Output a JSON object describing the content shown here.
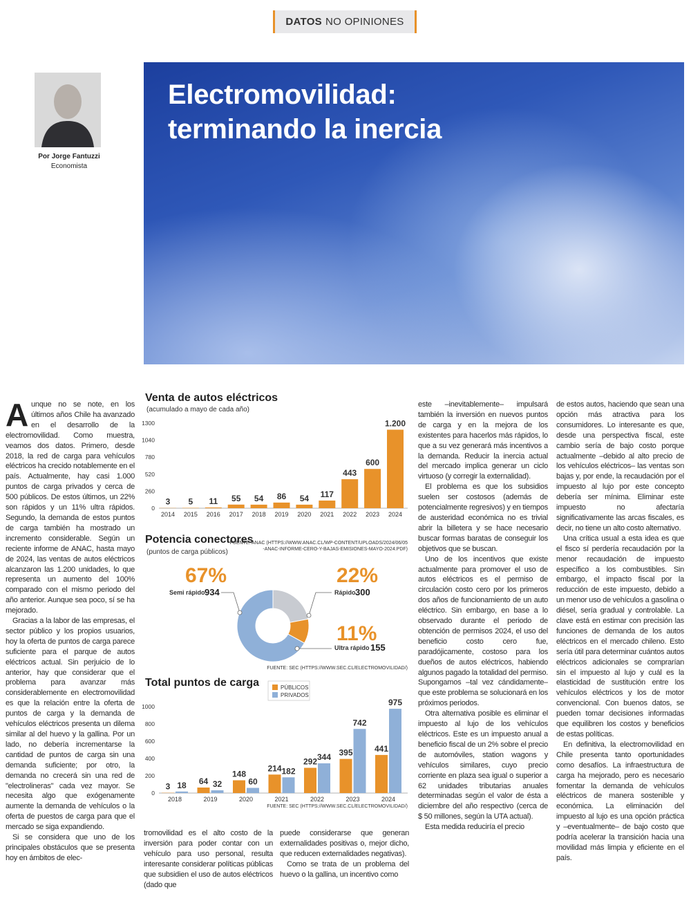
{
  "header": {
    "bold": "DATOS",
    "rest": "NO OPINIONES"
  },
  "author": {
    "name": "Por Jorge Fantuzzi",
    "role": "Economista"
  },
  "title": [
    "Electromovilidad:",
    "terminando la inercia"
  ],
  "article": {
    "dropcap": "A",
    "columns": [
      [
        "unque no se note, en los últimos años Chile ha avanzado en el desarrollo de la electromovilidad. Como muestra, veamos dos datos. Primero, desde 2018, la red de carga para vehículos eléctricos ha crecido notablemente en el país. Actualmente, hay casi 1.000 puntos de carga privados y cerca de 500 públicos. De estos últimos, un 22% son rápidos y un 11% ultra rápidos. Segundo, la demanda de estos puntos de carga también ha mostrado un incremento considerable. Según un reciente informe de ANAC, hasta mayo de 2024, las ventas de autos eléctricos alcanzaron las 1.200 unidades, lo que representa un aumento del 100% comparado con el mismo periodo del año anterior. Aunque sea poco, sí se ha mejorado.",
        "Gracias a la labor de las empresas, el sector público y los propios usuarios, hoy la oferta de puntos de carga parece suficiente para el parque de autos eléctricos actual. Sin perjuicio de lo anterior, hay que considerar que el problema para avanzar más considerablemente en electromovilidad es que la relación entre la oferta de puntos de carga y la demanda de vehículos eléctricos presenta un dilema similar al del huevo y la gallina. Por un lado, no debería incrementarse la cantidad de puntos de carga sin una demanda suficiente; por otro, la demanda no crecerá sin una red de \"electrolineras\" cada vez mayor. Se necesita algo que exógenamente aumente la demanda de vehículos o la oferta de puestos de carga para que el mercado se siga expandiendo.",
        "Si se considera que uno de los principales obstáculos que se presenta hoy en ámbitos de elec-"
      ],
      [
        "tromovilidad es el alto costo de la inversión para poder contar con un vehículo para uso personal, resulta interesante considerar políticas públicas que subsidien el uso de autos eléctricos (dado que"
      ],
      [
        "puede considerarse que generan externalidades positivas o, mejor dicho, que reducen externalidades negativas).",
        "Como se trata de un problema del huevo o la gallina, un incentivo como"
      ],
      [
        "este –inevitablemente– impulsará también la inversión en nuevos puntos de carga y en la mejora de los existentes para hacerlos más rápidos, lo que a su vez generará más incentivos a la demanda. Reducir la inercia actual del mercado implica generar un ciclo virtuoso (y corregir la externalidad).",
        "El problema es que los subsidios suelen ser costosos (además de potencialmente regresivos) y en tiempos de austeridad económica no es trivial abrir la billetera y se hace necesario buscar formas baratas de conseguir los objetivos que se buscan.",
        "Uno de los incentivos que existe actualmente para promover el uso de autos eléctricos es el permiso de circulación costo cero por los primeros dos años de funcionamiento de un auto eléctrico. Sin embargo, en base a lo observado durante el periodo de obtención de permisos 2024, el uso del beneficio costo cero fue, paradójicamente, costoso para los dueños de autos eléctricos, habiendo algunos pagado la totalidad del permiso. Supongamos –tal vez cándidamente– que este problema se solucionará en los próximos periodos.",
        "Otra alternativa posible es eliminar el impuesto al lujo de los vehículos eléctricos. Este es un impuesto anual a beneficio fiscal de un 2% sobre el precio de automóviles, station wagons y vehículos similares, cuyo precio corriente en plaza sea igual o superior a 62 unidades tributarias anuales determinadas según el valor de ésta a diciembre del año respectivo (cerca de $ 50 millones, según la UTA actual).",
        "Esta medida reduciría el precio"
      ],
      [
        "de estos autos, haciendo que sean una opción más atractiva para los consumidores. Lo interesante es que, desde una perspectiva fiscal, este cambio sería de bajo costo porque actualmente –debido al alto precio de los vehículos eléctricos– las ventas son bajas y, por ende, la recaudación por el impuesto al lujo por este concepto debería ser mínima. Eliminar este impuesto no afectaría significativamente las arcas fiscales, es decir, no tiene un alto costo alternativo.",
        "Una crítica usual a esta idea es que el fisco sí perdería recaudación por la menor recaudación de impuesto específico a los combustibles. Sin embargo, el impacto fiscal por la reducción de este impuesto, debido a un menor uso de vehículos a gasolina o diésel, sería gradual y controlable. La clave está en estimar con precisión las funciones de demanda de los autos eléctricos en el mercado chileno. Esto sería útil para determinar cuántos autos eléctricos adicionales se comprarían sin el impuesto al lujo y cuál es la elasticidad de sustitución entre los vehículos eléctricos y los de motor convencional. Con buenos datos, se pueden tomar decisiones informadas que equilibren los costos y beneficios de estas políticas.",
        "En definitiva, la electromovilidad en Chile presenta tanto oportunidades como desafíos. La infraestructura de carga ha mejorado, pero es necesario fomentar la demanda de vehículos eléctricos de manera sostenible y económica. La eliminación del impuesto al lujo es una opción práctica y –eventualmente– de bajo costo que podría acelerar la transición hacia una movilidad más limpia y eficiente en el país."
      ]
    ]
  },
  "chart_data": [
    {
      "type": "bar",
      "title": "Venta de autos eléctricos",
      "subtitle": "(acumulado a mayo de cada año)",
      "categories": [
        "2014",
        "2015",
        "2016",
        "2017",
        "2018",
        "2019",
        "2020",
        "2021",
        "2022",
        "2023",
        "2024"
      ],
      "values": [
        3,
        5,
        11,
        55,
        54,
        86,
        54,
        117,
        443,
        600,
        1200
      ],
      "value_labels": [
        "3",
        "5",
        "11",
        "55",
        "54",
        "86",
        "54",
        "117",
        "443",
        "600",
        "1.200"
      ],
      "color": "#e8922a",
      "ylim": [
        0,
        1300
      ],
      "yticks": [
        0,
        260,
        520,
        780,
        1040,
        1300
      ],
      "grid": false,
      "source": [
        "FUENTE: ANAC (HTTPS://WWW.ANAC.CL/WP-CONTENT/UPLOADS/2024/06/05",
        "-ANAC-INFORME-CERO-Y-BAJAS-EMISIONES-MAYO-2024.PDF)"
      ]
    },
    {
      "type": "donut",
      "title": "Potencia conectores",
      "subtitle": "(puntos de carga públicos)",
      "categories": [
        "Semi rápido",
        "Rápido",
        "Ultra rápido"
      ],
      "values": [
        67,
        22,
        11
      ],
      "value_labels": [
        "67%",
        "22%",
        "11%"
      ],
      "counts": [
        934,
        300,
        155
      ],
      "colors": [
        "#8fb0d8",
        "#c8cbd1",
        "#e8922a"
      ],
      "source": [
        "FUENTE: SEC (HTTPS://WWW.SEC.CL/ELECTROMOVILIDAD/)"
      ]
    },
    {
      "type": "bar",
      "title": "Total puntos de carga",
      "categories": [
        "2018",
        "2019",
        "2020",
        "2021",
        "2022",
        "2023",
        "2024"
      ],
      "series": [
        {
          "name": "PÚBLICOS",
          "color": "#e8922a",
          "values": [
            3,
            64,
            148,
            214,
            292,
            395,
            441
          ]
        },
        {
          "name": "PRIVADOS",
          "color": "#8fb0d8",
          "values": [
            18,
            32,
            60,
            182,
            344,
            742,
            975
          ]
        }
      ],
      "ylim": [
        0,
        1000
      ],
      "yticks": [
        0,
        200,
        400,
        600,
        800,
        1000
      ],
      "grid": false,
      "source": [
        "FUENTE: SEC (HTTPS://WWW.SEC.CL/ELECTROMOVILIDAD/)"
      ]
    }
  ]
}
